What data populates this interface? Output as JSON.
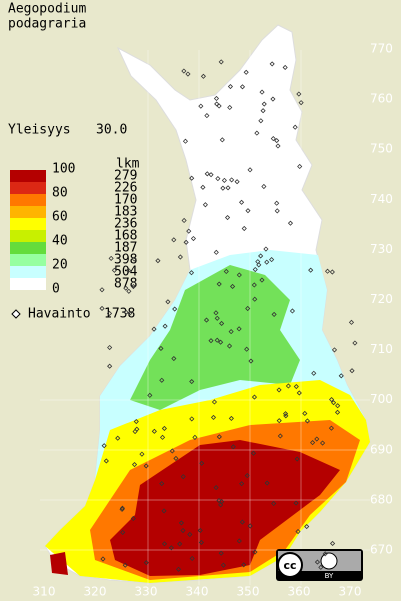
{
  "header": {
    "title_lines": [
      "Aegopodium",
      "podagraria"
    ]
  },
  "frequency": {
    "label": "Yleisyys",
    "value": "30.0"
  },
  "legend": {
    "scale_labels": [
      100,
      80,
      60,
      40,
      20,
      0
    ],
    "count_header": "lkm",
    "classes": [
      {
        "color": "#b40000",
        "count": 279
      },
      {
        "color": "#dc2814",
        "count": 226
      },
      {
        "color": "#ff7800",
        "count": 170
      },
      {
        "color": "#ffb400",
        "count": 183
      },
      {
        "color": "#ffff00",
        "count": 236
      },
      {
        "color": "#c8f000",
        "count": 168
      },
      {
        "color": "#64dc3c",
        "count": 187
      },
      {
        "color": "#96ffa0",
        "count": 398
      },
      {
        "color": "#c8ffff",
        "count": 504
      },
      {
        "color": "#ffffff",
        "count": 878
      }
    ]
  },
  "observations": {
    "label": "Havainto",
    "count": 1738
  },
  "axes": {
    "y_labels": [
      770,
      760,
      750,
      740,
      730,
      720,
      710,
      700,
      690,
      680,
      670
    ],
    "x_labels": [
      310,
      320,
      330,
      340,
      350,
      360,
      370
    ]
  },
  "license": {
    "badge": "cc",
    "type": "BY"
  }
}
